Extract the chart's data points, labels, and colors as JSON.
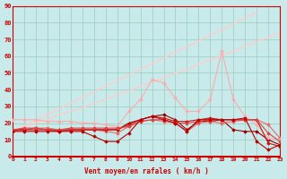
{
  "xlabel": "Vent moyen/en rafales ( km/h )",
  "ylim": [
    0,
    90
  ],
  "xlim": [
    0,
    23
  ],
  "yticks": [
    0,
    10,
    20,
    30,
    40,
    50,
    60,
    70,
    80,
    90
  ],
  "xticks": [
    0,
    1,
    2,
    3,
    4,
    5,
    6,
    7,
    8,
    9,
    10,
    11,
    12,
    13,
    14,
    15,
    16,
    17,
    18,
    19,
    20,
    21,
    22,
    23
  ],
  "bg_color": "#c8eaea",
  "grid_color": "#99ccbb",
  "series": [
    {
      "x": [
        0,
        1,
        2,
        3,
        4,
        5,
        6,
        7,
        8,
        9,
        10,
        11,
        12,
        13,
        14,
        15,
        16,
        17,
        18,
        19,
        20,
        21,
        22,
        23
      ],
      "y": [
        15,
        15,
        15,
        15,
        15,
        15,
        15,
        12,
        9,
        9,
        14,
        22,
        24,
        22,
        20,
        15,
        22,
        22,
        22,
        22,
        23,
        9,
        4,
        7
      ],
      "color": "#bb0000",
      "lw": 0.8,
      "marker": "D",
      "ms": 1.8,
      "zorder": 5
    },
    {
      "x": [
        0,
        1,
        2,
        3,
        4,
        5,
        6,
        7,
        8,
        9,
        10,
        11,
        12,
        13,
        14,
        15,
        16,
        17,
        18,
        19,
        20,
        21,
        22,
        23
      ],
      "y": [
        16,
        16,
        16,
        16,
        15,
        16,
        16,
        16,
        16,
        16,
        19,
        22,
        24,
        23,
        21,
        21,
        22,
        23,
        22,
        22,
        22,
        22,
        8,
        6
      ],
      "color": "#cc1111",
      "lw": 0.8,
      "marker": "D",
      "ms": 1.8,
      "zorder": 4
    },
    {
      "x": [
        0,
        1,
        2,
        3,
        4,
        5,
        6,
        7,
        8,
        9,
        10,
        11,
        12,
        13,
        14,
        15,
        16,
        17,
        18,
        19,
        20,
        21,
        22,
        23
      ],
      "y": [
        16,
        16,
        17,
        16,
        16,
        16,
        16,
        16,
        16,
        16,
        20,
        22,
        24,
        25,
        22,
        16,
        21,
        21,
        22,
        16,
        15,
        15,
        10,
        7
      ],
      "color": "#990000",
      "lw": 0.8,
      "marker": "D",
      "ms": 1.8,
      "zorder": 3
    },
    {
      "x": [
        0,
        1,
        2,
        3,
        4,
        5,
        6,
        7,
        8,
        9,
        10,
        11,
        12,
        13,
        14,
        15,
        16,
        17,
        18,
        19,
        20,
        21,
        22,
        23
      ],
      "y": [
        16,
        17,
        17,
        16,
        16,
        17,
        17,
        17,
        17,
        17,
        18,
        21,
        22,
        22,
        20,
        20,
        21,
        22,
        22,
        22,
        22,
        22,
        14,
        9
      ],
      "color": "#dd4444",
      "lw": 0.8,
      "marker": "D",
      "ms": 1.8,
      "zorder": 4
    },
    {
      "x": [
        0,
        1,
        2,
        3,
        4,
        5,
        6,
        7,
        8,
        9,
        10,
        11,
        12,
        13,
        14,
        15,
        16,
        17,
        18,
        19,
        20,
        21,
        22,
        23
      ],
      "y": [
        15,
        16,
        17,
        17,
        16,
        16,
        16,
        16,
        15,
        14,
        18,
        21,
        22,
        21,
        20,
        15,
        20,
        21,
        20,
        21,
        22,
        22,
        19,
        11
      ],
      "color": "#ee6666",
      "lw": 0.8,
      "marker": "D",
      "ms": 1.8,
      "zorder": 3
    },
    {
      "x": [
        0,
        1,
        2,
        3,
        4,
        5,
        6,
        7,
        8,
        9,
        10,
        11,
        12,
        13,
        14,
        15,
        16,
        17,
        18,
        19,
        20,
        21,
        22,
        23
      ],
      "y": [
        22,
        22,
        22,
        21,
        21,
        21,
        20,
        20,
        19,
        18,
        27,
        34,
        46,
        44,
        35,
        27,
        27,
        34,
        63,
        34,
        24,
        19,
        11,
        10
      ],
      "color": "#ffaaaa",
      "lw": 0.8,
      "marker": "D",
      "ms": 1.8,
      "zorder": 3
    },
    {
      "x": [
        0,
        1,
        2,
        3,
        4,
        5,
        6,
        7,
        8,
        9,
        10,
        11,
        12,
        13,
        14,
        15,
        16,
        17,
        18,
        19,
        20,
        21,
        22,
        23
      ],
      "y": [
        15,
        18,
        20,
        22,
        25,
        27,
        29,
        32,
        34,
        37,
        39,
        42,
        45,
        47,
        50,
        52,
        55,
        58,
        60,
        63,
        66,
        69,
        71,
        74
      ],
      "color": "#ffcccc",
      "lw": 1.0,
      "marker": null,
      "ms": 0,
      "zorder": 2
    }
  ],
  "line_series": {
    "x": [
      0,
      21
    ],
    "y": [
      15,
      86
    ],
    "color": "#ffcccc",
    "lw": 1.0
  }
}
